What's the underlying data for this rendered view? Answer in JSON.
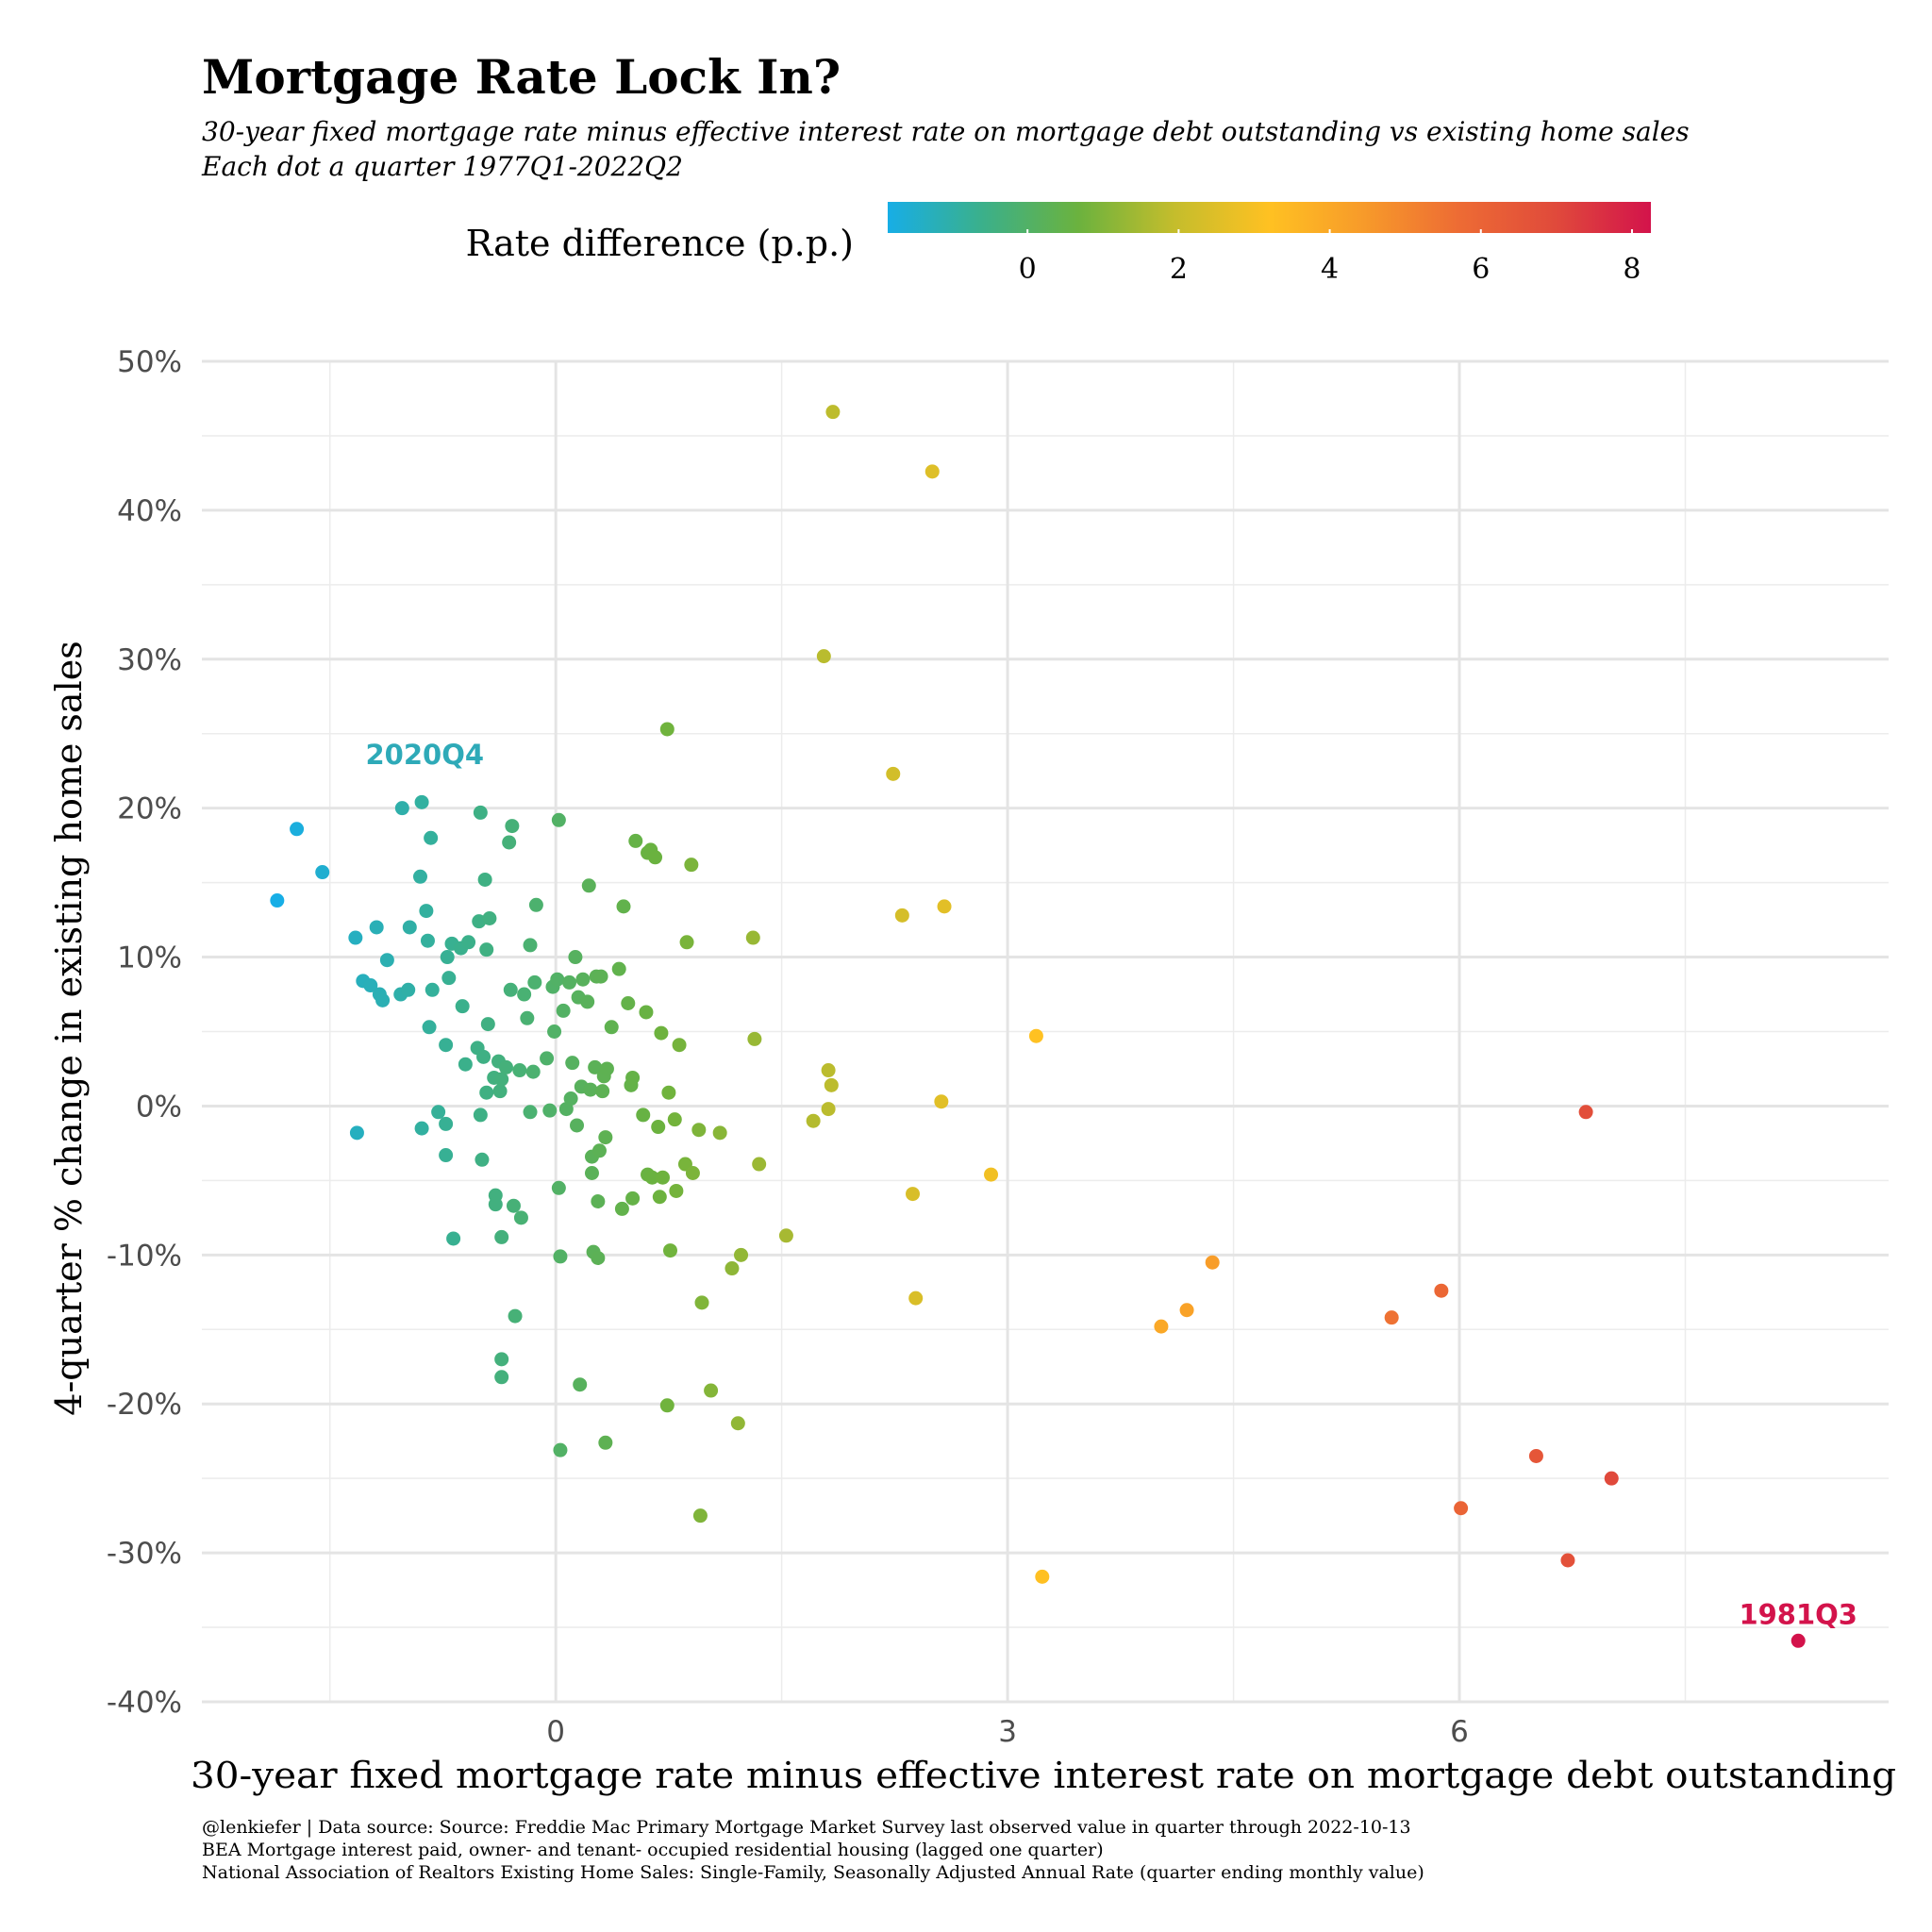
{
  "chart_data": {
    "type": "scatter",
    "title": "Mortgage Rate Lock In?",
    "subtitle": [
      "30-year fixed mortgage rate minus effective interest rate on mortgage debt outstanding vs existing home sales",
      "Each dot a quarter 1977Q1-2022Q2"
    ],
    "xlabel": "30-year fixed mortgage rate minus effective interest rate on mortgage debt outstanding",
    "ylabel": "4-quarter % change in existing home sales",
    "xlim": [
      -2.35,
      8.85
    ],
    "ylim": [
      -40,
      50
    ],
    "x_ticks": [
      0,
      3,
      6
    ],
    "x_tick_labels": [
      "0",
      "3",
      "6"
    ],
    "y_ticks": [
      -40,
      -30,
      -20,
      -10,
      0,
      10,
      20,
      30,
      40,
      50
    ],
    "y_tick_labels": [
      "-40%",
      "-30%",
      "-20%",
      "-10%",
      "0%",
      "10%",
      "20%",
      "30%",
      "40%",
      "50%"
    ],
    "grid": true,
    "color_legend": {
      "title": "Rate difference (p.p.)",
      "range": [
        -1.85,
        8.25
      ],
      "ticks": [
        0,
        2,
        4,
        6,
        8
      ],
      "tick_labels": [
        "0",
        "2",
        "4",
        "6",
        "8"
      ],
      "palette": [
        "#17aee6",
        "#3bb08a",
        "#6bb23e",
        "#c4bd2c",
        "#ffc122",
        "#f79a2a",
        "#ed6b34",
        "#e04a3b",
        "#d3134b"
      ]
    },
    "annotations": [
      {
        "label": "2020Q4",
        "x": -0.87,
        "y": 21.8,
        "color": "#2eaab8"
      },
      {
        "label": "1981Q3",
        "x": 8.25,
        "y": -35.9,
        "color": "#d3134b"
      }
    ],
    "points": [
      [
        -1.85,
        13.8
      ],
      [
        -1.72,
        18.6
      ],
      [
        -1.55,
        15.7
      ],
      [
        -1.32,
        -1.8
      ],
      [
        -1.33,
        11.3
      ],
      [
        -1.28,
        8.4
      ],
      [
        -1.23,
        8.1
      ],
      [
        -1.19,
        12.0
      ],
      [
        -1.17,
        7.5
      ],
      [
        -1.15,
        7.1
      ],
      [
        -1.12,
        9.8
      ],
      [
        -1.03,
        7.5
      ],
      [
        -1.02,
        20.0
      ],
      [
        -0.98,
        7.8
      ],
      [
        -0.97,
        12.0
      ],
      [
        -0.9,
        15.4
      ],
      [
        -0.89,
        20.4
      ],
      [
        -0.89,
        -1.5
      ],
      [
        -0.86,
        13.1
      ],
      [
        -0.85,
        11.1
      ],
      [
        -0.84,
        5.3
      ],
      [
        -0.83,
        18.0
      ],
      [
        -0.82,
        7.8
      ],
      [
        -0.78,
        -0.4
      ],
      [
        -0.73,
        -1.2
      ],
      [
        -0.73,
        4.1
      ],
      [
        -0.73,
        -3.3
      ],
      [
        -0.72,
        10.0
      ],
      [
        -0.71,
        8.6
      ],
      [
        -0.69,
        10.9
      ],
      [
        -0.68,
        -8.9
      ],
      [
        -0.63,
        10.6
      ],
      [
        -0.62,
        6.7
      ],
      [
        -0.6,
        2.8
      ],
      [
        -0.58,
        11.0
      ],
      [
        -0.52,
        3.9
      ],
      [
        -0.51,
        12.4
      ],
      [
        -0.5,
        19.7
      ],
      [
        -0.5,
        -0.6
      ],
      [
        -0.49,
        -3.6
      ],
      [
        -0.48,
        3.3
      ],
      [
        -0.47,
        15.2
      ],
      [
        -0.46,
        0.9
      ],
      [
        -0.46,
        10.5
      ],
      [
        -0.45,
        5.5
      ],
      [
        -0.44,
        12.6
      ],
      [
        -0.41,
        1.9
      ],
      [
        -0.4,
        -6.0
      ],
      [
        -0.4,
        -6.6
      ],
      [
        -0.38,
        3.0
      ],
      [
        -0.37,
        1.0
      ],
      [
        -0.36,
        1.8
      ],
      [
        -0.36,
        -8.8
      ],
      [
        -0.36,
        -17.0
      ],
      [
        -0.36,
        -18.2
      ],
      [
        -0.33,
        2.6
      ],
      [
        -0.31,
        17.7
      ],
      [
        -0.3,
        7.8
      ],
      [
        -0.29,
        18.8
      ],
      [
        -0.28,
        -6.7
      ],
      [
        -0.27,
        -14.1
      ],
      [
        -0.24,
        2.4
      ],
      [
        -0.23,
        -7.5
      ],
      [
        -0.21,
        7.5
      ],
      [
        -0.19,
        5.9
      ],
      [
        -0.17,
        10.8
      ],
      [
        -0.17,
        -0.4
      ],
      [
        -0.15,
        2.3
      ],
      [
        -0.14,
        8.3
      ],
      [
        -0.13,
        13.5
      ],
      [
        -0.06,
        3.2
      ],
      [
        -0.04,
        -0.3
      ],
      [
        -0.02,
        8.0
      ],
      [
        -0.01,
        5.0
      ],
      [
        0.01,
        8.5
      ],
      [
        0.02,
        19.2
      ],
      [
        0.02,
        -5.5
      ],
      [
        0.03,
        -10.1
      ],
      [
        0.03,
        -23.1
      ],
      [
        0.05,
        6.4
      ],
      [
        0.07,
        -0.2
      ],
      [
        0.09,
        8.3
      ],
      [
        0.1,
        0.5
      ],
      [
        0.11,
        2.9
      ],
      [
        0.13,
        10.0
      ],
      [
        0.14,
        -1.3
      ],
      [
        0.15,
        7.3
      ],
      [
        0.16,
        -18.7
      ],
      [
        0.17,
        1.3
      ],
      [
        0.18,
        8.5
      ],
      [
        0.21,
        7.0
      ],
      [
        0.22,
        14.8
      ],
      [
        0.23,
        1.1
      ],
      [
        0.24,
        -4.5
      ],
      [
        0.24,
        -3.4
      ],
      [
        0.25,
        -9.8
      ],
      [
        0.26,
        2.6
      ],
      [
        0.27,
        8.7
      ],
      [
        0.28,
        -10.2
      ],
      [
        0.28,
        -6.4
      ],
      [
        0.29,
        -3.0
      ],
      [
        0.3,
        8.7
      ],
      [
        0.31,
        1.0
      ],
      [
        0.32,
        2.0
      ],
      [
        0.33,
        -2.1
      ],
      [
        0.33,
        -22.6
      ],
      [
        0.34,
        2.5
      ],
      [
        0.37,
        5.3
      ],
      [
        0.42,
        9.2
      ],
      [
        0.44,
        -6.9
      ],
      [
        0.45,
        13.4
      ],
      [
        0.48,
        6.9
      ],
      [
        0.5,
        1.4
      ],
      [
        0.51,
        -6.2
      ],
      [
        0.51,
        1.9
      ],
      [
        0.53,
        17.8
      ],
      [
        0.58,
        -0.6
      ],
      [
        0.6,
        6.3
      ],
      [
        0.61,
        -4.6
      ],
      [
        0.61,
        17.0
      ],
      [
        0.63,
        17.2
      ],
      [
        0.64,
        -4.8
      ],
      [
        0.66,
        16.7
      ],
      [
        0.68,
        -1.4
      ],
      [
        0.69,
        -6.1
      ],
      [
        0.7,
        4.9
      ],
      [
        0.71,
        -4.8
      ],
      [
        0.74,
        -20.1
      ],
      [
        0.74,
        25.3
      ],
      [
        0.75,
        0.9
      ],
      [
        0.76,
        -9.7
      ],
      [
        0.79,
        -0.9
      ],
      [
        0.8,
        -5.7
      ],
      [
        0.82,
        4.1
      ],
      [
        0.86,
        -3.9
      ],
      [
        0.87,
        11.0
      ],
      [
        0.9,
        16.2
      ],
      [
        0.91,
        -4.5
      ],
      [
        0.95,
        -1.6
      ],
      [
        0.96,
        -27.5
      ],
      [
        0.97,
        -13.2
      ],
      [
        1.03,
        -19.1
      ],
      [
        1.09,
        -1.8
      ],
      [
        1.17,
        -10.9
      ],
      [
        1.21,
        -21.3
      ],
      [
        1.23,
        -10.0
      ],
      [
        1.31,
        11.3
      ],
      [
        1.32,
        4.5
      ],
      [
        1.35,
        -3.9
      ],
      [
        1.53,
        -8.7
      ],
      [
        1.71,
        -1.0
      ],
      [
        1.78,
        30.2
      ],
      [
        1.81,
        2.4
      ],
      [
        1.81,
        -0.2
      ],
      [
        1.83,
        1.4
      ],
      [
        1.84,
        46.6
      ],
      [
        2.24,
        22.3
      ],
      [
        2.3,
        12.8
      ],
      [
        2.37,
        -5.9
      ],
      [
        2.39,
        -12.9
      ],
      [
        2.5,
        42.6
      ],
      [
        2.56,
        0.3
      ],
      [
        2.58,
        13.4
      ],
      [
        2.89,
        -4.6
      ],
      [
        3.19,
        4.7
      ],
      [
        3.23,
        -31.6
      ],
      [
        4.02,
        -14.8
      ],
      [
        4.19,
        -13.7
      ],
      [
        4.36,
        -10.5
      ],
      [
        5.55,
        -14.2
      ],
      [
        5.88,
        -12.4
      ],
      [
        6.01,
        -27.0
      ],
      [
        6.51,
        -23.5
      ],
      [
        6.72,
        -30.5
      ],
      [
        6.84,
        -0.4
      ],
      [
        7.01,
        -25.0
      ],
      [
        8.25,
        -35.9
      ]
    ],
    "caption": [
      "@lenkiefer | Data source: Source: Freddie Mac Primary Mortgage Market Survey last observed value in quarter through 2022-10-13",
      "BEA Mortgage interest paid, owner- and tenant- occupied residential housing (lagged one quarter)",
      "National Association of Realtors Existing Home Sales: Single-Family, Seasonally Adjusted Annual Rate  (quarter ending monthly value)"
    ]
  }
}
